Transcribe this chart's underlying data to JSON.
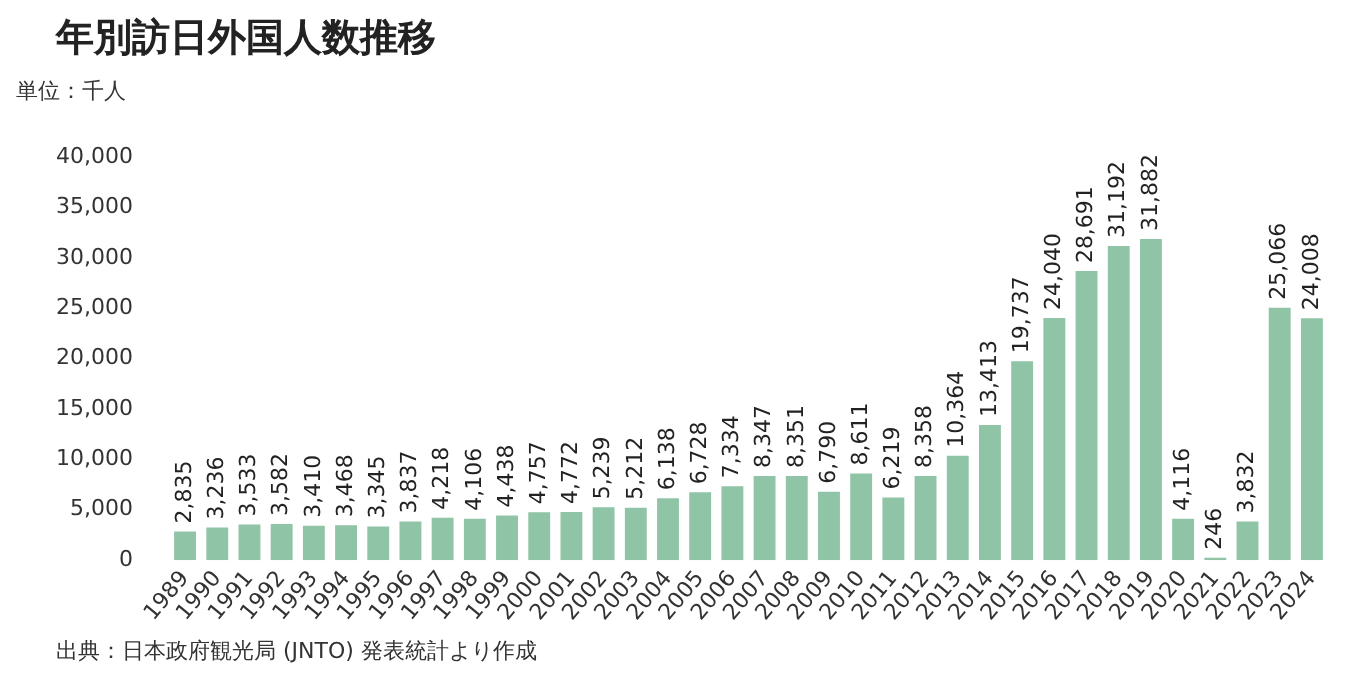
{
  "chart_data": {
    "type": "bar",
    "title": "年別訪日外国人数推移",
    "ylabel": "単位：千人",
    "annotations": [
      "出典：日本政府観光局 (JNTO) 発表統計より作成"
    ],
    "categories": [
      "1989",
      "1990",
      "1991",
      "1992",
      "1993",
      "1994",
      "1995",
      "1996",
      "1997",
      "1998",
      "1999",
      "2000",
      "2001",
      "2002",
      "2003",
      "2004",
      "2005",
      "2006",
      "2007",
      "2008",
      "2009",
      "2010",
      "2011",
      "2012",
      "2013",
      "2014",
      "2015",
      "2016",
      "2017",
      "2018",
      "2019",
      "2020",
      "2021",
      "2022",
      "2023",
      "2024"
    ],
    "values": [
      2835,
      3236,
      3533,
      3582,
      3410,
      3468,
      3345,
      3837,
      4218,
      4106,
      4438,
      4757,
      4772,
      5239,
      5212,
      6138,
      6728,
      7334,
      8347,
      8351,
      6790,
      8611,
      6219,
      8358,
      10364,
      13413,
      19737,
      24040,
      28691,
      31192,
      31882,
      4116,
      246,
      3832,
      25066,
      24008
    ],
    "value_labels": [
      "2,835",
      "3,236",
      "3,533",
      "3,582",
      "3,410",
      "3,468",
      "3,345",
      "3,837",
      "4,218",
      "4,106",
      "4,438",
      "4,757",
      "4,772",
      "5,239",
      "5,212",
      "6,138",
      "6,728",
      "7,334",
      "8,347",
      "8,351",
      "6,790",
      "8,611",
      "6,219",
      "8,358",
      "10,364",
      "13,413",
      "19,737",
      "24,040",
      "28,691",
      "31,192",
      "31,882",
      "4,116",
      "246",
      "3,832",
      "25,066",
      "24,008"
    ],
    "color": "#8fc4a6",
    "ylim": [
      0,
      40000
    ],
    "yticks": [
      0,
      {
        "value": 5000,
        "label": "5,000"
      },
      {
        "value": 10000,
        "label": "10,000"
      },
      {
        "value": 15000,
        "label": "15,000"
      },
      {
        "value": 20000,
        "label": "20,000"
      },
      {
        "value": 25000,
        "label": "25,000"
      },
      {
        "value": 30000,
        "label": "30,000"
      },
      {
        "value": 35000,
        "label": "35,000"
      },
      {
        "value": 40000,
        "label": "40,000"
      }
    ],
    "grid": false,
    "legend": false
  }
}
